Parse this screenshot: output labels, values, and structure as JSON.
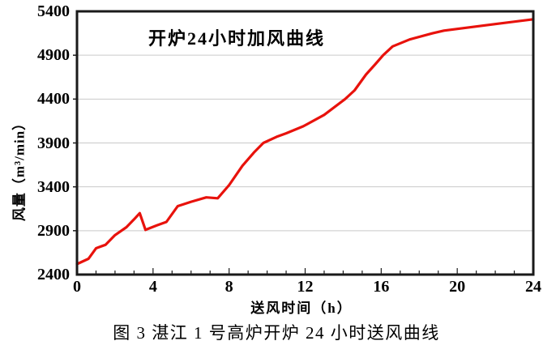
{
  "figure": {
    "title": "开炉24小时加风曲线",
    "x_axis_label": "送风时间（h）",
    "y_axis_label": "风量（m³/min）",
    "caption": "图 3 湛江 1 号高炉开炉 24 小时送风曲线"
  },
  "chart_data": {
    "type": "line",
    "title": "开炉24小时加风曲线",
    "xlabel": "送风时间（h）",
    "ylabel": "风量（m³/min）",
    "xlim": [
      0,
      24
    ],
    "ylim": [
      2400,
      5400
    ],
    "x_major_ticks": [
      0,
      4,
      8,
      12,
      16,
      20,
      24
    ],
    "x_minor_step": 1,
    "y_ticks": [
      2400,
      2900,
      3400,
      3900,
      4400,
      4900,
      5400
    ],
    "grid": "horizontal-only",
    "legend": "none",
    "colors": {
      "line": "#e8120c",
      "grid": "#c9c9c9",
      "frame": "#1a1a1a",
      "background": "#ffffff"
    },
    "series": [
      {
        "name": "加风曲线",
        "points": [
          [
            0,
            2520
          ],
          [
            0.6,
            2580
          ],
          [
            1,
            2700
          ],
          [
            1.5,
            2740
          ],
          [
            2,
            2850
          ],
          [
            2.6,
            2940
          ],
          [
            3,
            3030
          ],
          [
            3.3,
            3100
          ],
          [
            3.6,
            2910
          ],
          [
            4.2,
            2960
          ],
          [
            4.7,
            3000
          ],
          [
            5.3,
            3180
          ],
          [
            6,
            3230
          ],
          [
            6.8,
            3280
          ],
          [
            7.4,
            3270
          ],
          [
            8,
            3420
          ],
          [
            8.7,
            3640
          ],
          [
            9.3,
            3790
          ],
          [
            9.8,
            3900
          ],
          [
            10.5,
            3970
          ],
          [
            11,
            4010
          ],
          [
            11.9,
            4090
          ],
          [
            13,
            4220
          ],
          [
            14.1,
            4400
          ],
          [
            14.6,
            4500
          ],
          [
            15.2,
            4680
          ],
          [
            15.7,
            4800
          ],
          [
            16.1,
            4900
          ],
          [
            16.6,
            5000
          ],
          [
            17.5,
            5080
          ],
          [
            18.7,
            5150
          ],
          [
            19.3,
            5180
          ],
          [
            20,
            5200
          ],
          [
            22,
            5255
          ],
          [
            24,
            5310
          ]
        ]
      }
    ]
  }
}
